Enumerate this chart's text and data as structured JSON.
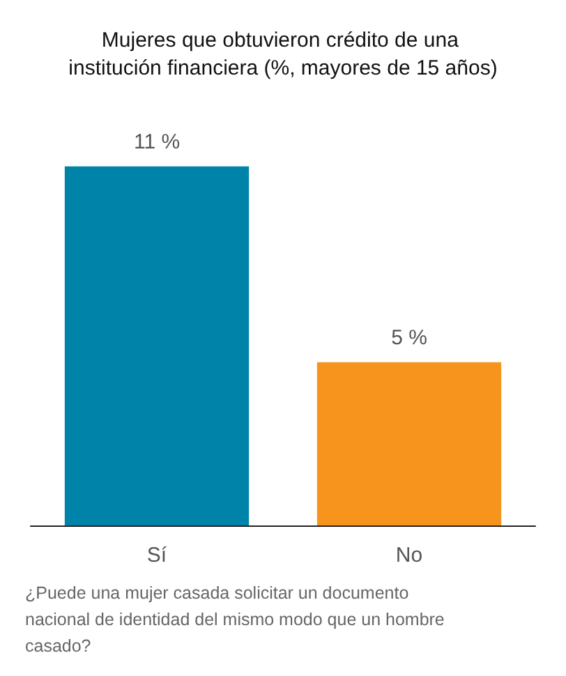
{
  "chart_data": {
    "type": "bar",
    "title": "Mujeres que obtuvieron crédito de una institución financiera (%, mayores de 15 años)",
    "categories": [
      "Sí",
      "No"
    ],
    "values": [
      11,
      5
    ],
    "colors": [
      "#0083a9",
      "#f7941d"
    ],
    "value_labels": [
      "11 %",
      "5 %"
    ],
    "annotations": [
      "¿Puede una mujer casada solicitar un documento nacional de identidad del mismo modo que un hombre casado?"
    ]
  }
}
